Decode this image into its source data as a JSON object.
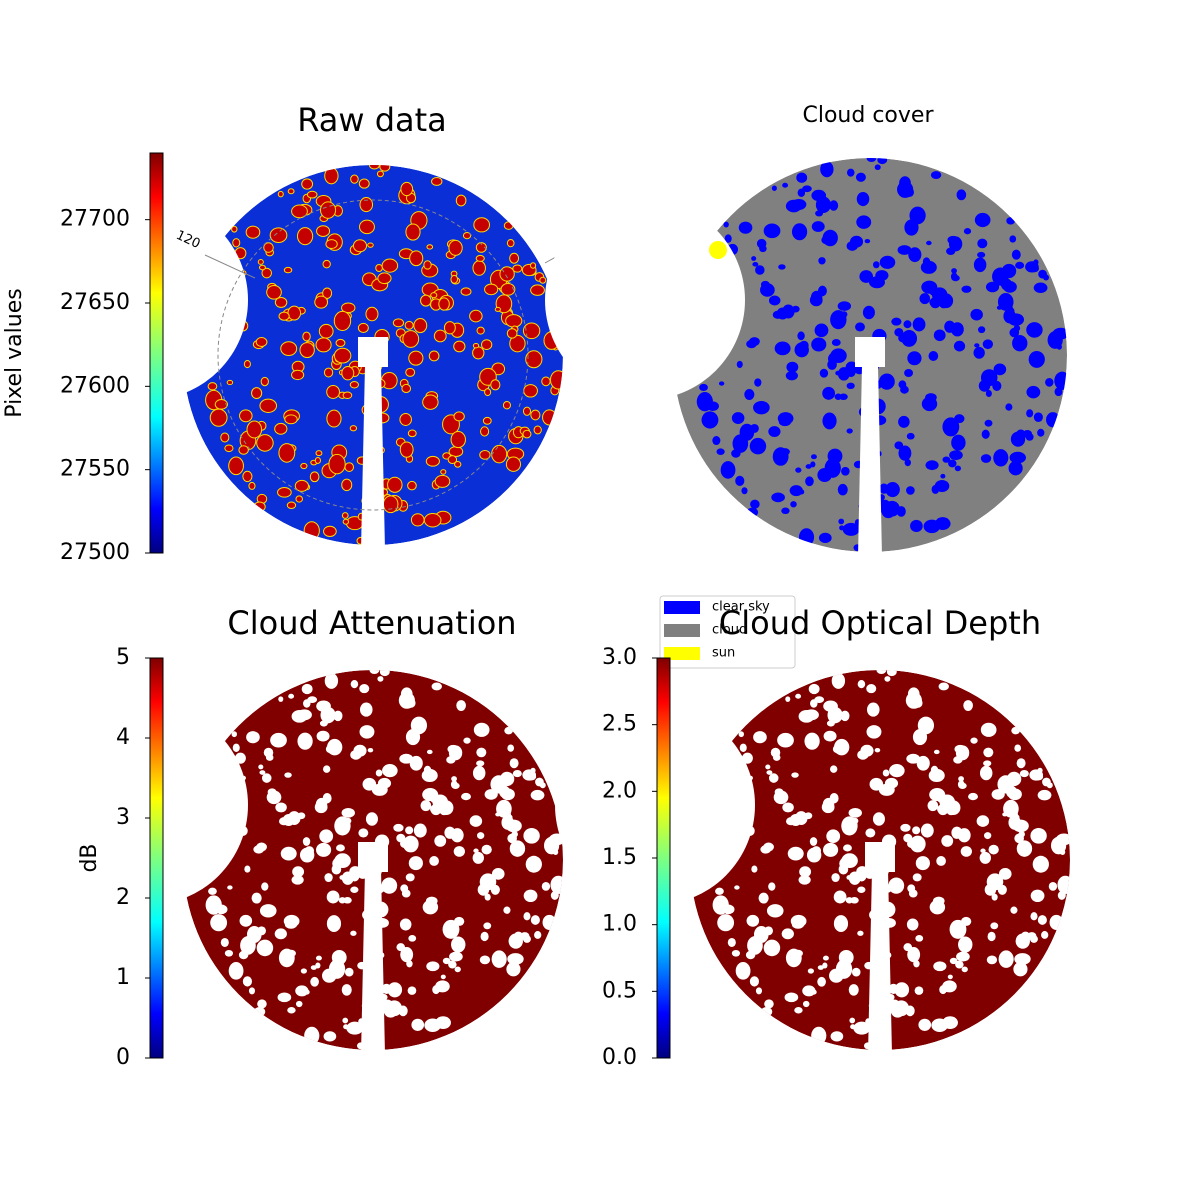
{
  "chart_data": [
    {
      "type": "image",
      "title": "Raw data",
      "colorbar": {
        "label": "Pixel values",
        "clim": [
          27500,
          27740
        ],
        "ticks": [
          27500,
          27550,
          27600,
          27650,
          27700
        ],
        "colormap": "jet"
      },
      "annotations": [
        "120"
      ]
    },
    {
      "type": "image",
      "title": "Cloud cover",
      "legend": {
        "entries": [
          {
            "name": "clear sky",
            "color": "#0000ff"
          },
          {
            "name": "cloud",
            "color": "#808080"
          },
          {
            "name": "sun",
            "color": "#ffff00"
          }
        ]
      }
    },
    {
      "type": "image",
      "title": "Cloud Attenuation",
      "colorbar": {
        "label": "dB",
        "clim": [
          0,
          5
        ],
        "ticks": [
          0,
          1,
          2,
          3,
          4,
          5
        ],
        "colormap": "jet"
      }
    },
    {
      "type": "image",
      "title": "Cloud Optical Depth",
      "colorbar": {
        "clim": [
          0,
          3
        ],
        "ticks": [
          {
            "value": 0,
            "label": "0.0"
          },
          0.5,
          {
            "value": 1,
            "label": "1.0"
          },
          1.5,
          {
            "value": 2,
            "label": "2.0"
          },
          2.5,
          {
            "value": 3,
            "label": "3.0"
          }
        ],
        "colormap": "jet"
      }
    }
  ]
}
